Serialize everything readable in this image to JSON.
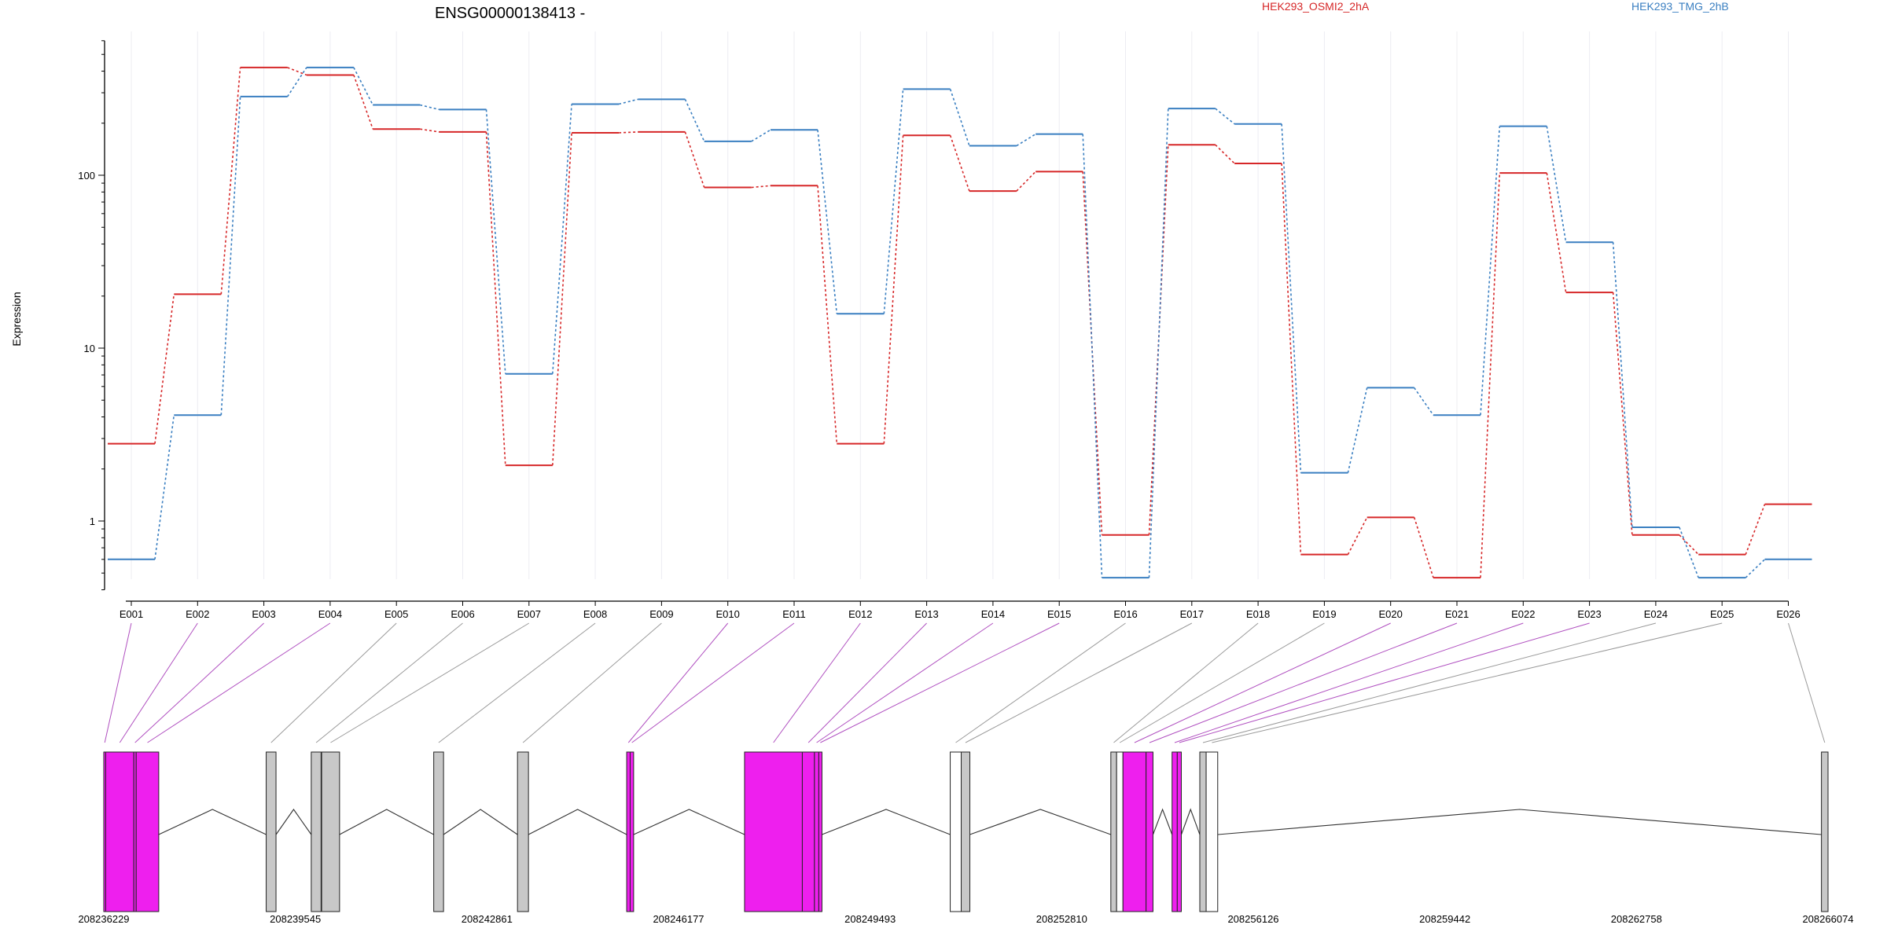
{
  "chart_data": {
    "type": "line",
    "title": "ENSG00000138413 -",
    "ylabel": "Expression",
    "yscale": "log",
    "ylim": [
      0.4,
      600
    ],
    "y_ticks": [
      {
        "value": 1,
        "label": "1"
      },
      {
        "value": 10,
        "label": "10"
      },
      {
        "value": 100,
        "label": "100"
      }
    ],
    "grid": true,
    "legend_placement": "top",
    "categories": [
      "E001",
      "E002",
      "E003",
      "E004",
      "E005",
      "E006",
      "E007",
      "E008",
      "E009",
      "E010",
      "E011",
      "E012",
      "E013",
      "E014",
      "E015",
      "E016",
      "E017",
      "E018",
      "E019",
      "E020",
      "E021",
      "E022",
      "E023",
      "E024",
      "E025",
      "E026"
    ],
    "series": [
      {
        "name": "HEK293_OSMI2_2hA",
        "color": "#d62728",
        "values": [
          2.8,
          20.5,
          420,
          380,
          185,
          178,
          2.1,
          176,
          178,
          85,
          87,
          2.8,
          170,
          81,
          105,
          0.83,
          150,
          117,
          0.64,
          1.05,
          0.47,
          103,
          21,
          0.83,
          0.64,
          1.25
        ]
      },
      {
        "name": "HEK293_TMG_2hB",
        "color": "#3a7fc1",
        "values": [
          0.6,
          4.1,
          285,
          420,
          255,
          240,
          7.1,
          258,
          275,
          157,
          183,
          15.8,
          315,
          148,
          173,
          0.47,
          243,
          198,
          1.9,
          5.9,
          4.1,
          192,
          41,
          0.92,
          0.47,
          0.6
        ]
      }
    ],
    "gene_model": {
      "coordinate_labels": [
        "208236229",
        "208239545",
        "208242861",
        "208246177",
        "208249493",
        "208252810",
        "208256126",
        "208259442",
        "208262758",
        "208266074"
      ],
      "genomic_range": [
        208236229,
        208266074
      ],
      "exons": [
        {
          "id": "E001",
          "start": 208236229,
          "end": 208236262,
          "highlight": true
        },
        {
          "id": "E002",
          "start": 208236262,
          "end": 208236749,
          "highlight": true
        },
        {
          "id": "E003",
          "start": 208236749,
          "end": 208236790,
          "highlight": true
        },
        {
          "id": "E004",
          "start": 208236790,
          "end": 208237180,
          "highlight": true
        },
        {
          "id": "E005",
          "start": 208239040,
          "end": 208239210,
          "highlight": false
        },
        {
          "id": "E006",
          "start": 208239820,
          "end": 208239990,
          "highlight": false
        },
        {
          "id": "E007",
          "start": 208240000,
          "end": 208240310,
          "highlight": false
        },
        {
          "id": "E008",
          "start": 208241940,
          "end": 208242110,
          "highlight": false
        },
        {
          "id": "E009",
          "start": 208243390,
          "end": 208243580,
          "highlight": false
        },
        {
          "id": "E010",
          "start": 208245280,
          "end": 208245340,
          "highlight": true
        },
        {
          "id": "E011",
          "start": 208245340,
          "end": 208245400,
          "highlight": true
        },
        {
          "id": "E012",
          "start": 208247320,
          "end": 208248320,
          "highlight": true
        },
        {
          "id": "E013",
          "start": 208248320,
          "end": 208248530,
          "highlight": true
        },
        {
          "id": "E014",
          "start": 208248530,
          "end": 208248605,
          "highlight": true
        },
        {
          "id": "E015",
          "start": 208248605,
          "end": 208248660,
          "highlight": true
        },
        {
          "id": "E016",
          "start": 208250880,
          "end": 208251070,
          "highlight": false
        },
        {
          "id": "E017",
          "start": 208251070,
          "end": 208251220,
          "highlight": false
        },
        {
          "id": "E018",
          "start": 208253660,
          "end": 208253760,
          "highlight": false
        },
        {
          "id": "E019",
          "start": 208253760,
          "end": 208253870,
          "highlight": false
        },
        {
          "id": "E020",
          "start": 208253870,
          "end": 208254270,
          "highlight": true
        },
        {
          "id": "E021",
          "start": 208254270,
          "end": 208254390,
          "highlight": true
        },
        {
          "id": "E022",
          "start": 208254720,
          "end": 208254810,
          "highlight": true
        },
        {
          "id": "E023",
          "start": 208254810,
          "end": 208254880,
          "highlight": true
        },
        {
          "id": "E024",
          "start": 208255200,
          "end": 208255310,
          "highlight": false
        },
        {
          "id": "E025",
          "start": 208255310,
          "end": 208255510,
          "highlight": false
        },
        {
          "id": "E026",
          "start": 208265960,
          "end": 208266074,
          "highlight": false
        }
      ],
      "introns": [
        [
          208237180,
          208239040
        ],
        [
          208239210,
          208239820
        ],
        [
          208240310,
          208241940
        ],
        [
          208242110,
          208243390
        ],
        [
          208243580,
          208245280
        ],
        [
          208245400,
          208247320
        ],
        [
          208248660,
          208250880
        ],
        [
          208251220,
          208253660
        ],
        [
          208254390,
          208254720
        ],
        [
          208254880,
          208255200
        ],
        [
          208255510,
          208265960
        ]
      ]
    }
  },
  "colors": {
    "highlight_exon": "#ee1fee",
    "plain_exon": "#c8c8c8",
    "open_exon": "#ffffff",
    "connector_highlight": "#b050c0",
    "connector_plain": "#9a9a9a"
  }
}
